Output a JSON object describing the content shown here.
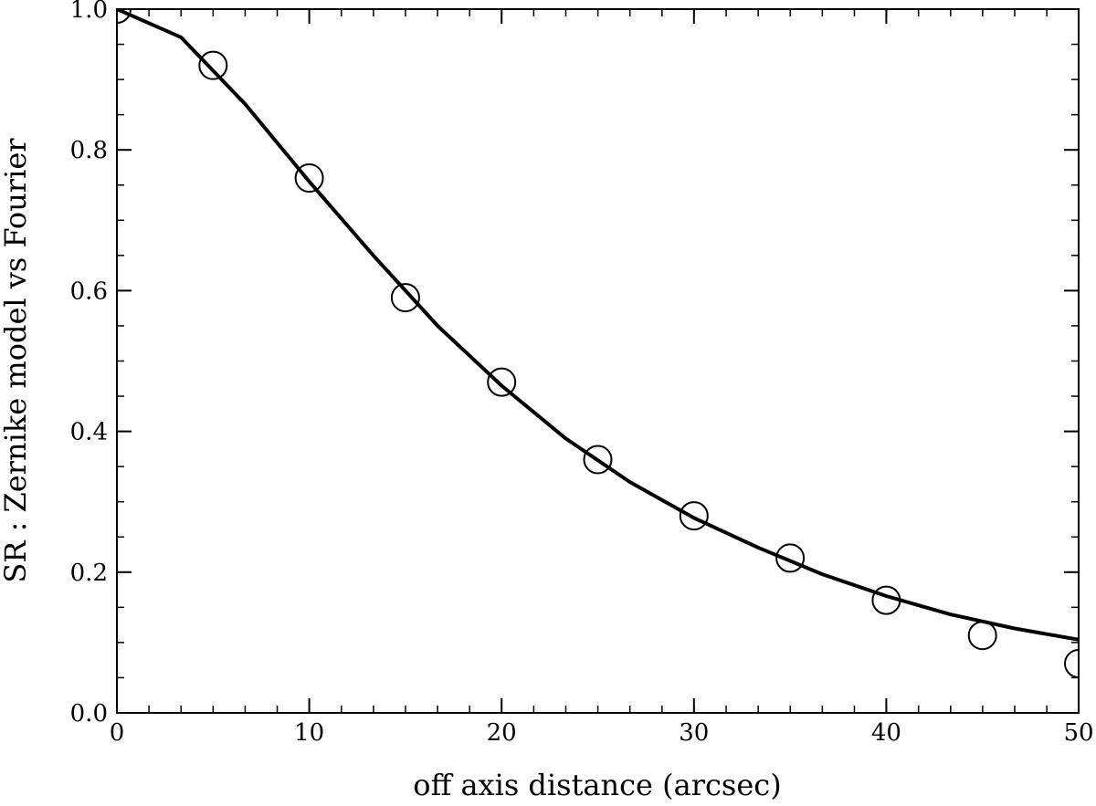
{
  "chart_data": {
    "type": "line",
    "title": "",
    "xlabel": "off axis distance (arcsec)",
    "ylabel": "SR : Zernike model vs Fourier",
    "xlim": [
      0,
      50
    ],
    "ylim": [
      0,
      1.0
    ],
    "x_ticks": [
      {
        "value": 0,
        "label": "0"
      },
      {
        "value": 10,
        "label": "10"
      },
      {
        "value": 20,
        "label": "20"
      },
      {
        "value": 30,
        "label": "30"
      },
      {
        "value": 40,
        "label": "40"
      },
      {
        "value": 50,
        "label": "50"
      }
    ],
    "y_ticks": [
      {
        "value": 0.0,
        "label": "0.0"
      },
      {
        "value": 0.2,
        "label": "0.2"
      },
      {
        "value": 0.4,
        "label": "0.4"
      },
      {
        "value": 0.6,
        "label": "0.6"
      },
      {
        "value": 0.8,
        "label": "0.8"
      },
      {
        "value": 1.0,
        "label": "1.0"
      }
    ],
    "x_minor_step": 1.667,
    "y_minor_step": 0.05,
    "grid": false,
    "series": [
      {
        "style": "line",
        "color": "#000000",
        "x": [
          0,
          3.33,
          6.67,
          10,
          13.33,
          16.67,
          20,
          23.33,
          26.67,
          30,
          33.33,
          36.67,
          40,
          43.33,
          46.67,
          50
        ],
        "y": [
          1.0,
          0.96,
          0.865,
          0.755,
          0.65,
          0.55,
          0.465,
          0.39,
          0.328,
          0.277,
          0.235,
          0.197,
          0.166,
          0.14,
          0.12,
          0.104
        ]
      },
      {
        "style": "open-circle",
        "color": "#000000",
        "x": [
          0,
          5,
          10,
          15,
          20,
          25,
          30,
          35,
          40,
          45,
          50
        ],
        "y": [
          1.0,
          0.92,
          0.76,
          0.59,
          0.47,
          0.36,
          0.28,
          0.22,
          0.16,
          0.11,
          0.07
        ]
      }
    ]
  }
}
